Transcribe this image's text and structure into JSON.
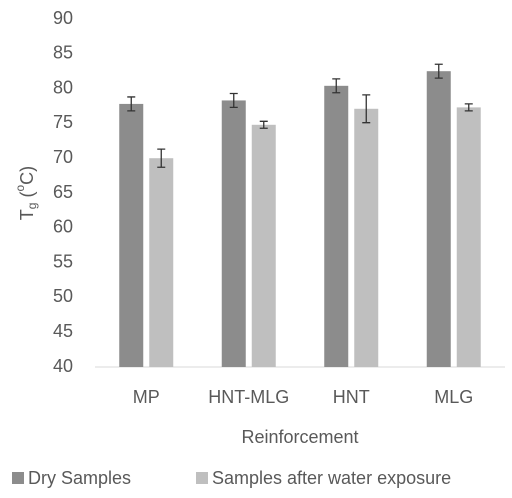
{
  "chart_data": {
    "type": "bar",
    "x_label": "Reinforcement",
    "y_label": [
      "T",
      "g",
      " (",
      "o",
      "C)"
    ],
    "categories": [
      "MP",
      "HNT-MLG",
      "HNT",
      "MLG"
    ],
    "series": [
      {
        "name": "Dry Samples",
        "color": "#8c8c8c",
        "values": [
          77.8,
          78.3,
          80.4,
          82.5
        ],
        "errors": [
          1.0,
          1.0,
          1.0,
          1.0
        ]
      },
      {
        "name": "Samples after water exposure",
        "color": "#bfbfbf",
        "values": [
          70.0,
          74.8,
          77.1,
          77.3
        ],
        "errors": [
          1.3,
          0.5,
          2.0,
          0.5
        ]
      }
    ],
    "ylim": [
      40,
      90
    ],
    "yticks": [
      40,
      45,
      50,
      55,
      60,
      65,
      70,
      75,
      80,
      85,
      90
    ],
    "grid": false,
    "legend": "bottom"
  }
}
